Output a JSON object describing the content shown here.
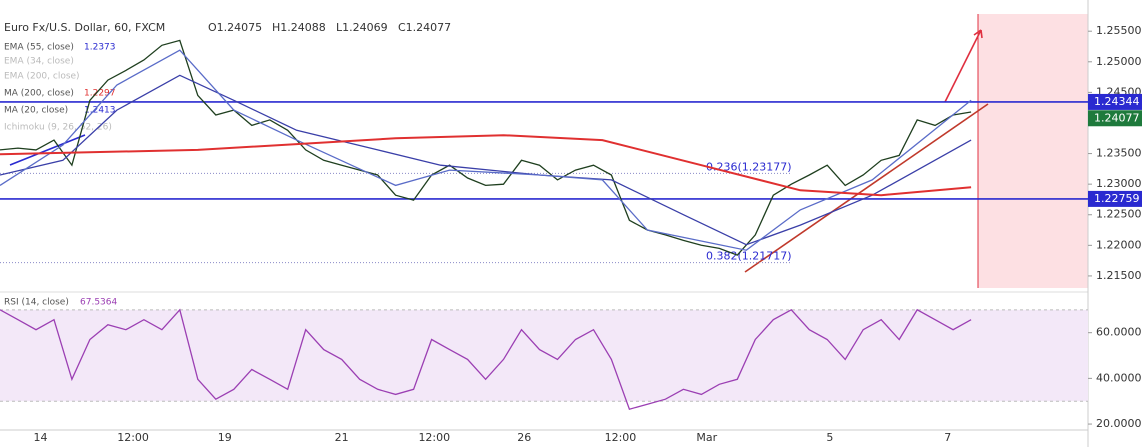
{
  "header": {
    "symbol": "Euro Fx/U.S. Dollar, 60, FXCM",
    "open": "O1.24075",
    "high": "H1.24088",
    "low": "L1.24069",
    "close": "C1.24077"
  },
  "legend": [
    {
      "name": "EMA (55, close)",
      "value": "1.2373"
    },
    {
      "name": "EMA (34, close)"
    },
    {
      "name": "EMA (200, close)"
    },
    {
      "name": "MA (200, close)",
      "value": "1.2297"
    },
    {
      "name": "MA (20, close)",
      "value": "1.2413"
    },
    {
      "name": "Ichimoku (9, 26, 52, 26)"
    }
  ],
  "chart_data": [
    {
      "type": "line",
      "xlim": [
        0,
        121
      ],
      "ylim": [
        1.2127,
        1.2601
      ],
      "xticks": [
        {
          "value": 4.5,
          "label": "14"
        },
        {
          "value": 14.8,
          "label": "12:00"
        },
        {
          "value": 25,
          "label": "19"
        },
        {
          "value": 38,
          "label": "21"
        },
        {
          "value": 48.3,
          "label": "12:00"
        },
        {
          "value": 58.3,
          "label": "26"
        },
        {
          "value": 69,
          "label": "12:00"
        },
        {
          "value": 78.6,
          "label": "Mar"
        },
        {
          "value": 92.3,
          "label": "5"
        },
        {
          "value": 105.4,
          "label": "7"
        }
      ],
      "yticks": [
        {
          "value": 1.255,
          "label": "1.25500"
        },
        {
          "value": 1.25,
          "label": "1.25000"
        },
        {
          "value": 1.245,
          "label": "1.24500"
        },
        {
          "value": 1.235,
          "label": "1.23500"
        },
        {
          "value": 1.23,
          "label": "1.23000"
        },
        {
          "value": 1.225,
          "label": "1.22500"
        },
        {
          "value": 1.22,
          "label": "1.22000"
        },
        {
          "value": 1.215,
          "label": "1.21500"
        }
      ],
      "series": [
        {
          "name": "Close",
          "color": "#1f3f1f",
          "x": [
            0,
            2,
            4,
            6,
            8,
            10,
            12,
            14,
            16,
            18,
            20,
            22,
            24,
            26,
            28,
            30,
            32,
            34,
            36,
            38,
            40,
            42,
            44,
            46,
            48,
            50,
            52,
            54,
            56,
            58,
            60,
            62,
            64,
            66,
            68,
            70,
            72,
            74,
            76,
            78,
            80,
            82,
            84,
            86,
            88,
            90,
            92,
            94,
            96,
            98,
            100,
            102,
            104,
            106,
            108
          ],
          "values": [
            1.2356,
            1.2359,
            1.2356,
            1.2372,
            1.2331,
            1.2437,
            1.247,
            1.2486,
            1.2503,
            1.2527,
            1.2535,
            1.2445,
            1.2413,
            1.2421,
            1.2396,
            1.2405,
            1.2388,
            1.2356,
            1.2339,
            1.2331,
            1.2323,
            1.2315,
            1.2282,
            1.2274,
            1.2315,
            1.2331,
            1.231,
            1.2298,
            1.23,
            1.2339,
            1.2331,
            1.2307,
            1.2323,
            1.2331,
            1.2315,
            1.2241,
            1.2225,
            1.2217,
            1.2208,
            1.22,
            1.2195,
            1.2184,
            1.2217,
            1.2282,
            1.23,
            1.2315,
            1.2331,
            1.2298,
            1.2315,
            1.2339,
            1.2347,
            1.2405,
            1.2396,
            1.2413,
            1.2418
          ]
        },
        {
          "name": "EMA (55, close)",
          "color": "#3a3fa8",
          "x": [
            0,
            7,
            13,
            20,
            26,
            33,
            42,
            49,
            60,
            68,
            76,
            83,
            89,
            97,
            108
          ],
          "values": [
            1.2315,
            1.2339,
            1.2421,
            1.2478,
            1.2437,
            1.2388,
            1.2356,
            1.2331,
            1.2315,
            1.2307,
            1.225,
            1.2201,
            1.2233,
            1.2282,
            1.2372
          ]
        },
        {
          "name": "MA (20, close)",
          "color": "#5a6cc8",
          "x": [
            0,
            7,
            13,
            20,
            26,
            33,
            44,
            50,
            60,
            67,
            72,
            83,
            89,
            97,
            108
          ],
          "values": [
            1.2298,
            1.2364,
            1.2462,
            1.2519,
            1.2421,
            1.2372,
            1.2298,
            1.2323,
            1.2315,
            1.2307,
            1.2225,
            1.2192,
            1.2258,
            1.2307,
            1.2437
          ]
        },
        {
          "name": "MA (200, close)",
          "color": "#e03030",
          "x": [
            0,
            22,
            44,
            56,
            67,
            78,
            89,
            98,
            108
          ],
          "values": [
            1.2349,
            1.2356,
            1.2375,
            1.238,
            1.2372,
            1.2331,
            1.229,
            1.2282,
            1.2295
          ]
        }
      ],
      "levels": [
        {
          "value": 1.24344,
          "color": "#2a2ad0"
        },
        {
          "value": 1.22759,
          "color": "#2a2ad0"
        }
      ],
      "last_price": {
        "value": 1.24077,
        "color": "#1e7a3c"
      },
      "fib": [
        {
          "value": 1.23177,
          "label": "0.236(1.23177)"
        },
        {
          "value": 1.21717,
          "label": "0.382(1.21717)"
        }
      ]
    },
    {
      "type": "line",
      "title": "RSI (14, close)",
      "current": "67.5364",
      "xlim": [
        0,
        121
      ],
      "ylim": [
        17.4,
        76.5
      ],
      "band": [
        30,
        70
      ],
      "yticks": [
        {
          "value": 60,
          "label": "60.0000"
        },
        {
          "value": 40,
          "label": "40.0000"
        },
        {
          "value": 20,
          "label": "20.0000"
        }
      ],
      "series": [
        {
          "name": "RSI",
          "color": "#9b3fb3",
          "x": [
            0,
            2,
            4,
            6,
            8,
            10,
            12,
            14,
            16,
            18,
            20,
            22,
            24,
            26,
            28,
            30,
            32,
            34,
            36,
            38,
            40,
            42,
            44,
            46,
            48,
            50,
            52,
            54,
            56,
            58,
            60,
            62,
            64,
            66,
            68,
            70,
            72,
            74,
            76,
            78,
            80,
            82,
            84,
            86,
            88,
            90,
            92,
            94,
            96,
            98,
            100,
            102,
            104,
            106,
            108
          ],
          "values": [
            70.0,
            65.7,
            61.3,
            65.7,
            39.6,
            57.0,
            63.5,
            61.3,
            65.7,
            61.3,
            70.0,
            39.6,
            30.9,
            35.2,
            43.9,
            39.6,
            35.2,
            61.3,
            52.6,
            48.3,
            39.6,
            35.2,
            33.0,
            35.2,
            57.0,
            52.6,
            48.3,
            39.6,
            48.3,
            61.3,
            52.6,
            48.3,
            57.0,
            61.3,
            48.3,
            26.5,
            28.7,
            30.9,
            35.2,
            33.0,
            37.4,
            39.6,
            57.0,
            65.7,
            70.0,
            61.3,
            57.0,
            48.3,
            61.3,
            65.7,
            57.0,
            70.0,
            65.7,
            61.3,
            65.7
          ]
        }
      ]
    }
  ]
}
